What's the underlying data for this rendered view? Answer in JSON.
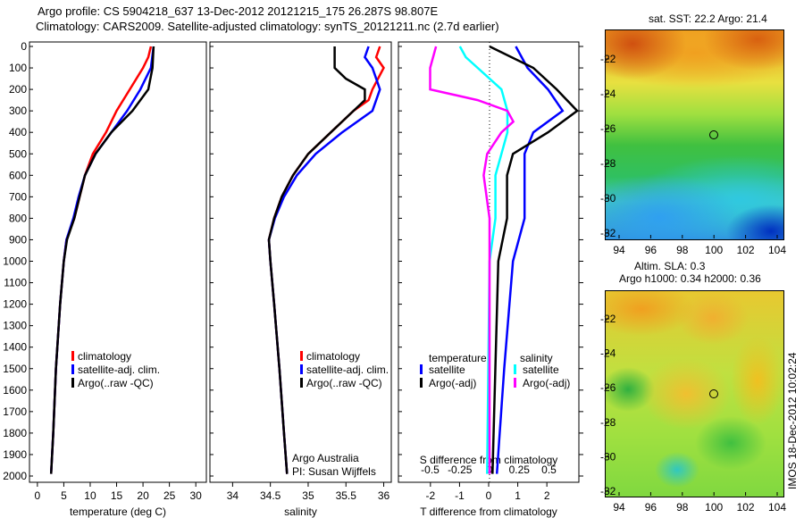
{
  "title1": "Argo profile: CS 5904218_637 13-Dec-2012 20121215_175 26.287S 98.807E",
  "title2": "Climatology: CARS2009. Satellite-adjusted climatology: synTS_20121211.nc (2.7d earlier)",
  "colors": {
    "climatology": "#ff0000",
    "satellite": "#0000ff",
    "argo": "#000000",
    "sal_satellite": "#00ffff",
    "sal_argo": "#ff00ff"
  },
  "credit": {
    "line1": "Argo Australia",
    "line2": "PI: Susan Wijffels"
  },
  "map1_title": "sat. SST: 22.2 Argo: 21.4",
  "map2_title1": "Altim. SLA: 0.3",
  "map2_title2": "Argo h1000: 0.34 h2000: 0.36",
  "side_label": "IMOS 18-Dec-2012 10:02:24",
  "chart_data": [
    {
      "type": "line",
      "xlabel": "temperature (deg C)",
      "ylabel": "depth",
      "xlim": [
        -1.5,
        32
      ],
      "ylim": [
        2040,
        0
      ],
      "xticks": [
        0,
        5,
        10,
        15,
        20,
        25,
        30
      ],
      "yticks": [
        0,
        100,
        200,
        300,
        400,
        500,
        600,
        700,
        800,
        900,
        1000,
        1100,
        1200,
        1300,
        1400,
        1500,
        1600,
        1700,
        1800,
        1900,
        2000
      ],
      "legend": [
        "climatology",
        "satellite-adj. clim.",
        "Argo(..raw -QC)"
      ],
      "series": [
        {
          "name": "climatology",
          "color": "#ff0000",
          "depth": [
            0,
            50,
            100,
            200,
            300,
            400,
            500,
            600,
            700,
            800,
            900,
            1000,
            1200,
            1500,
            1800,
            2040
          ],
          "values": [
            21.5,
            21,
            20,
            17.5,
            15,
            13,
            10.5,
            9,
            8,
            7,
            5.5,
            5,
            4.3,
            3.5,
            3,
            2.6
          ]
        },
        {
          "name": "satellite-adj. clim.",
          "color": "#0000ff",
          "depth": [
            0,
            100,
            200,
            300,
            400,
            500,
            600,
            700,
            800,
            900,
            1000,
            1200,
            1500,
            1800,
            2040
          ],
          "values": [
            22,
            21.5,
            19.5,
            17,
            14,
            11,
            9,
            7.8,
            6.8,
            5.5,
            5,
            4.3,
            3.5,
            3,
            2.6
          ]
        },
        {
          "name": "Argo(..raw -QC)",
          "color": "#000000",
          "depth": [
            0,
            100,
            200,
            300,
            400,
            500,
            600,
            700,
            800,
            900,
            1000,
            1200,
            1500,
            1800,
            2040
          ],
          "values": [
            22,
            21.8,
            21,
            18,
            14,
            11,
            9,
            8,
            7,
            5.6,
            5,
            4.3,
            3.5,
            3,
            2.6
          ]
        }
      ]
    },
    {
      "type": "line",
      "xlabel": "salinity",
      "ylabel": "depth",
      "xlim": [
        33.7,
        36.1
      ],
      "ylim": [
        2040,
        0
      ],
      "xticks": [
        34,
        34.5,
        35,
        35.5,
        36
      ],
      "legend": [
        "climatology",
        "satellite-adj. clim.",
        "Argo(..raw -QC)"
      ],
      "series": [
        {
          "name": "climatology",
          "color": "#ff0000",
          "depth": [
            0,
            50,
            100,
            200,
            250,
            300,
            400,
            500,
            600,
            700,
            800,
            900,
            1000,
            1200,
            1500,
            1800,
            2040
          ],
          "values": [
            35.95,
            35.9,
            36.0,
            35.85,
            35.8,
            35.6,
            35.3,
            35.0,
            34.8,
            34.65,
            34.55,
            34.48,
            34.5,
            34.55,
            34.62,
            34.68,
            34.72
          ]
        },
        {
          "name": "satellite-adj. clim.",
          "color": "#0000ff",
          "depth": [
            0,
            50,
            100,
            200,
            250,
            300,
            400,
            500,
            600,
            700,
            800,
            900,
            1000,
            1200,
            1500,
            1800,
            2040
          ],
          "values": [
            35.8,
            35.75,
            35.85,
            35.95,
            35.9,
            35.85,
            35.45,
            35.1,
            34.85,
            34.68,
            34.56,
            34.48,
            34.5,
            34.55,
            34.62,
            34.68,
            34.72
          ]
        },
        {
          "name": "Argo(..raw -QC)",
          "color": "#000000",
          "depth": [
            0,
            100,
            150,
            200,
            250,
            300,
            400,
            500,
            600,
            700,
            800,
            900,
            1000,
            1200,
            1500,
            1800,
            2040
          ],
          "values": [
            35.35,
            35.35,
            35.5,
            35.75,
            35.75,
            35.6,
            35.3,
            35.0,
            34.8,
            34.65,
            34.55,
            34.48,
            34.5,
            34.55,
            34.62,
            34.68,
            34.72
          ]
        }
      ]
    },
    {
      "type": "line",
      "xlabel": "T difference from climatology",
      "x2label": "S difference from climatology",
      "xlim": [
        -3.1,
        3.1
      ],
      "xticks": [
        -2,
        -1,
        0,
        1,
        2
      ],
      "x2ticks": [
        -0.5,
        -0.25,
        0,
        0.25,
        0.5
      ],
      "x2tick_labels": [
        "-0.5",
        "-0.25",
        "0",
        "0.25",
        "0.5"
      ],
      "ylim": [
        2040,
        0
      ],
      "legend_headers": [
        "temperature",
        "salinity"
      ],
      "legend": [
        "satellite",
        "Argo(-adj)",
        "satellite",
        "Argo(-adj)"
      ],
      "series": [
        {
          "name": "T satellite",
          "axis": "T",
          "color": "#0000ff",
          "depth": [
            0,
            100,
            200,
            300,
            400,
            500,
            800,
            1000,
            1500,
            2000
          ],
          "values": [
            0.9,
            1.3,
            2.0,
            2.5,
            1.5,
            1.2,
            1.2,
            0.8,
            0.5,
            0.25
          ]
        },
        {
          "name": "T Argo(-adj)",
          "axis": "T",
          "color": "#000000",
          "depth": [
            0,
            100,
            200,
            300,
            400,
            500,
            600,
            800,
            1000,
            1500,
            2000
          ],
          "values": [
            0,
            1.5,
            2.3,
            3,
            2,
            0.8,
            0.6,
            0.6,
            0.3,
            0.2,
            0.1
          ]
        },
        {
          "name": "S satellite",
          "axis": "S",
          "color": "#00ffff",
          "depth": [
            0,
            50,
            100,
            200,
            300,
            400,
            500,
            600,
            800,
            1000,
            2000
          ],
          "values": [
            -0.25,
            -0.2,
            -0.1,
            0.1,
            0.15,
            0.15,
            0.1,
            0.05,
            0.05,
            0,
            -0.02
          ]
        },
        {
          "name": "S Argo(-adj)",
          "axis": "S",
          "color": "#ff00ff",
          "depth": [
            0,
            100,
            200,
            250,
            300,
            350,
            400,
            500,
            600,
            800,
            1500,
            2000
          ],
          "values": [
            -0.45,
            -0.5,
            -0.5,
            -0.1,
            0.15,
            0.2,
            0.1,
            -0.02,
            -0.05,
            0,
            0,
            0
          ]
        }
      ]
    }
  ],
  "maps": {
    "lat_ticks": [
      "-22",
      "-24",
      "-26",
      "-28",
      "-30",
      "-32"
    ],
    "lon_ticks": [
      "94",
      "96",
      "98",
      "100",
      "102",
      "104"
    ]
  }
}
